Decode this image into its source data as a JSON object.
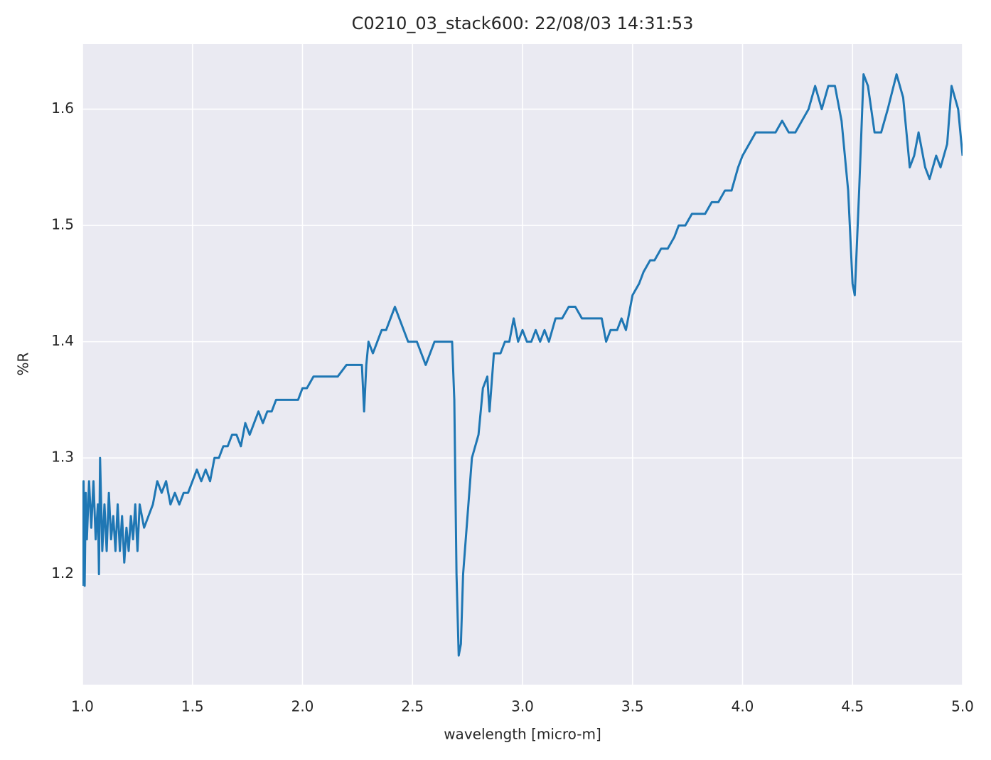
{
  "chart_data": {
    "type": "line",
    "title": "C0210_03_stack600:  22/08/03 14:31:53",
    "x_label": "wavelength [micro-m]",
    "y_label": "%R",
    "xlim": [
      1.0,
      5.0
    ],
    "ylim": [
      1.105,
      1.656
    ],
    "xticks": [
      {
        "value": 1.0,
        "label": "1.0"
      },
      1.5,
      {
        "value": 2.0,
        "label": "2.0"
      },
      2.5,
      {
        "value": 3.0,
        "label": "3.0"
      },
      3.5,
      {
        "value": 4.0,
        "label": "4.0"
      },
      4.5,
      {
        "value": 5.0,
        "label": "5.0"
      }
    ],
    "yticks": [
      1.2,
      1.3,
      1.4,
      1.5,
      1.6
    ],
    "grid": true,
    "x": [
      1.0,
      1.005,
      1.01,
      1.015,
      1.02,
      1.03,
      1.04,
      1.05,
      1.06,
      1.07,
      1.075,
      1.08,
      1.09,
      1.1,
      1.11,
      1.12,
      1.13,
      1.14,
      1.15,
      1.16,
      1.17,
      1.18,
      1.19,
      1.2,
      1.21,
      1.22,
      1.23,
      1.24,
      1.25,
      1.26,
      1.28,
      1.3,
      1.32,
      1.34,
      1.36,
      1.38,
      1.4,
      1.42,
      1.44,
      1.46,
      1.48,
      1.5,
      1.52,
      1.54,
      1.56,
      1.58,
      1.6,
      1.62,
      1.64,
      1.66,
      1.68,
      1.7,
      1.72,
      1.74,
      1.76,
      1.78,
      1.8,
      1.82,
      1.84,
      1.86,
      1.88,
      1.9,
      1.92,
      1.94,
      1.96,
      1.98,
      2.0,
      2.02,
      2.05,
      2.08,
      2.1,
      2.13,
      2.16,
      2.2,
      2.24,
      2.27,
      2.28,
      2.29,
      2.3,
      2.32,
      2.34,
      2.36,
      2.38,
      2.4,
      2.42,
      2.44,
      2.46,
      2.48,
      2.5,
      2.52,
      2.54,
      2.56,
      2.58,
      2.6,
      2.62,
      2.64,
      2.66,
      2.68,
      2.69,
      2.7,
      2.71,
      2.72,
      2.73,
      2.75,
      2.77,
      2.8,
      2.82,
      2.84,
      2.85,
      2.87,
      2.9,
      2.92,
      2.94,
      2.96,
      2.98,
      3.0,
      3.02,
      3.04,
      3.06,
      3.08,
      3.1,
      3.12,
      3.15,
      3.18,
      3.21,
      3.24,
      3.27,
      3.3,
      3.33,
      3.36,
      3.38,
      3.4,
      3.43,
      3.45,
      3.47,
      3.5,
      3.53,
      3.55,
      3.58,
      3.6,
      3.63,
      3.66,
      3.69,
      3.71,
      3.74,
      3.77,
      3.8,
      3.83,
      3.86,
      3.89,
      3.92,
      3.95,
      3.98,
      4.0,
      4.03,
      4.06,
      4.09,
      4.12,
      4.15,
      4.18,
      4.21,
      4.24,
      4.27,
      4.3,
      4.33,
      4.36,
      4.39,
      4.42,
      4.45,
      4.48,
      4.5,
      4.51,
      4.53,
      4.55,
      4.57,
      4.6,
      4.63,
      4.66,
      4.7,
      4.73,
      4.76,
      4.78,
      4.8,
      4.83,
      4.85,
      4.88,
      4.9,
      4.93,
      4.95,
      4.98,
      5.0
    ],
    "series": [
      {
        "name": "%R",
        "color": "#1f77b4",
        "values": [
          1.19,
          1.28,
          1.19,
          1.27,
          1.23,
          1.28,
          1.24,
          1.28,
          1.23,
          1.26,
          1.2,
          1.3,
          1.22,
          1.26,
          1.22,
          1.27,
          1.23,
          1.25,
          1.22,
          1.26,
          1.22,
          1.25,
          1.21,
          1.24,
          1.22,
          1.25,
          1.23,
          1.26,
          1.22,
          1.26,
          1.24,
          1.25,
          1.26,
          1.28,
          1.27,
          1.28,
          1.26,
          1.27,
          1.26,
          1.27,
          1.27,
          1.28,
          1.29,
          1.28,
          1.29,
          1.28,
          1.3,
          1.3,
          1.31,
          1.31,
          1.32,
          1.32,
          1.31,
          1.33,
          1.32,
          1.33,
          1.34,
          1.33,
          1.34,
          1.34,
          1.35,
          1.35,
          1.35,
          1.35,
          1.35,
          1.35,
          1.36,
          1.36,
          1.37,
          1.37,
          1.37,
          1.37,
          1.37,
          1.38,
          1.38,
          1.38,
          1.34,
          1.38,
          1.4,
          1.39,
          1.4,
          1.41,
          1.41,
          1.42,
          1.43,
          1.42,
          1.41,
          1.4,
          1.4,
          1.4,
          1.39,
          1.38,
          1.39,
          1.4,
          1.4,
          1.4,
          1.4,
          1.4,
          1.35,
          1.2,
          1.13,
          1.14,
          1.2,
          1.25,
          1.3,
          1.32,
          1.36,
          1.37,
          1.34,
          1.39,
          1.39,
          1.4,
          1.4,
          1.42,
          1.4,
          1.41,
          1.4,
          1.4,
          1.41,
          1.4,
          1.41,
          1.4,
          1.42,
          1.42,
          1.43,
          1.43,
          1.42,
          1.42,
          1.42,
          1.42,
          1.4,
          1.41,
          1.41,
          1.42,
          1.41,
          1.44,
          1.45,
          1.46,
          1.47,
          1.47,
          1.48,
          1.48,
          1.49,
          1.5,
          1.5,
          1.51,
          1.51,
          1.51,
          1.52,
          1.52,
          1.53,
          1.53,
          1.55,
          1.56,
          1.57,
          1.58,
          1.58,
          1.58,
          1.58,
          1.59,
          1.58,
          1.58,
          1.59,
          1.6,
          1.62,
          1.6,
          1.62,
          1.62,
          1.59,
          1.53,
          1.45,
          1.44,
          1.53,
          1.63,
          1.62,
          1.58,
          1.58,
          1.6,
          1.63,
          1.61,
          1.55,
          1.56,
          1.58,
          1.55,
          1.54,
          1.56,
          1.55,
          1.57,
          1.62,
          1.6,
          1.56
        ]
      }
    ]
  }
}
